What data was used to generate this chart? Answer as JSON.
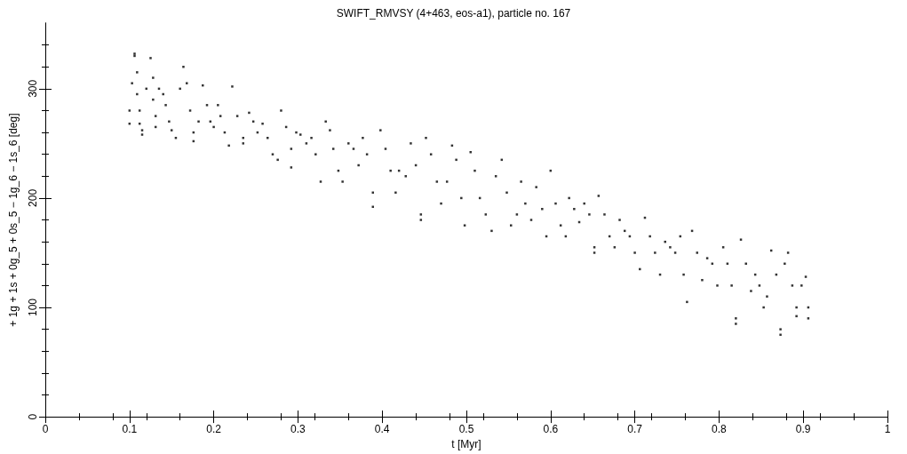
{
  "chart_data": {
    "type": "scatter",
    "title": "SWIFT_RMVSY (4+463, eos-a1), particle no. 167",
    "xlabel": "t [Myr]",
    "ylabel": "+ 1g + 1s + 0g_5 + 0s_5 − 1g_6 − 1s_6 [deg]",
    "xlim": [
      0,
      1
    ],
    "ylim": [
      0,
      360
    ],
    "xticks": [
      0,
      0.1,
      0.2,
      0.3,
      0.4,
      0.5,
      0.6,
      0.7,
      0.8,
      0.9,
      1
    ],
    "yticks": [
      0,
      100,
      200,
      300
    ],
    "marker": "square",
    "series": [
      {
        "color": "#000000",
        "x": [
          0.1,
          0.1,
          0.103,
          0.106,
          0.106,
          0.109,
          0.109,
          0.112,
          0.112,
          0.115,
          0.115,
          0.12,
          0.125,
          0.128,
          0.128,
          0.131,
          0.131,
          0.135,
          0.14,
          0.143,
          0.147,
          0.15,
          0.155,
          0.16,
          0.164,
          0.168,
          0.172,
          0.176,
          0.176,
          0.182,
          0.187,
          0.192,
          0.196,
          0.2,
          0.205,
          0.208,
          0.213,
          0.218,
          0.222,
          0.228,
          0.235,
          0.235,
          0.242,
          0.247,
          0.252,
          0.258,
          0.264,
          0.27,
          0.276,
          0.28,
          0.286,
          0.292,
          0.292,
          0.298,
          0.303,
          0.31,
          0.316,
          0.321,
          0.327,
          0.333,
          0.338,
          0.342,
          0.348,
          0.353,
          0.36,
          0.366,
          0.372,
          0.377,
          0.382,
          0.389,
          0.389,
          0.398,
          0.404,
          0.41,
          0.416,
          0.42,
          0.428,
          0.434,
          0.44,
          0.446,
          0.446,
          0.452,
          0.458,
          0.465,
          0.47,
          0.477,
          0.483,
          0.488,
          0.494,
          0.498,
          0.505,
          0.51,
          0.516,
          0.523,
          0.53,
          0.535,
          0.542,
          0.548,
          0.553,
          0.56,
          0.565,
          0.57,
          0.577,
          0.583,
          0.59,
          0.595,
          0.6,
          0.606,
          0.612,
          0.618,
          0.622,
          0.628,
          0.634,
          0.64,
          0.646,
          0.652,
          0.652,
          0.657,
          0.664,
          0.67,
          0.676,
          0.682,
          0.688,
          0.694,
          0.7,
          0.706,
          0.712,
          0.718,
          0.724,
          0.73,
          0.736,
          0.742,
          0.748,
          0.754,
          0.758,
          0.762,
          0.768,
          0.774,
          0.78,
          0.786,
          0.792,
          0.798,
          0.805,
          0.81,
          0.815,
          0.82,
          0.82,
          0.826,
          0.832,
          0.838,
          0.843,
          0.848,
          0.853,
          0.857,
          0.862,
          0.868,
          0.873,
          0.873,
          0.878,
          0.882,
          0.887,
          0.892,
          0.892,
          0.898,
          0.903,
          0.906,
          0.906
        ],
        "values": [
          268,
          280,
          305,
          330,
          332,
          315,
          295,
          280,
          268,
          262,
          258,
          300,
          328,
          310,
          290,
          275,
          265,
          300,
          295,
          285,
          270,
          262,
          255,
          300,
          320,
          305,
          280,
          260,
          252,
          270,
          303,
          285,
          270,
          265,
          285,
          275,
          260,
          248,
          302,
          275,
          255,
          250,
          278,
          270,
          260,
          268,
          255,
          240,
          235,
          280,
          265,
          245,
          228,
          260,
          258,
          250,
          255,
          240,
          215,
          270,
          262,
          245,
          225,
          215,
          250,
          245,
          230,
          255,
          240,
          205,
          192,
          262,
          245,
          225,
          205,
          225,
          220,
          250,
          230,
          185,
          180,
          255,
          240,
          215,
          195,
          215,
          248,
          235,
          200,
          175,
          242,
          225,
          200,
          185,
          170,
          220,
          235,
          205,
          175,
          185,
          215,
          195,
          180,
          210,
          190,
          165,
          225,
          195,
          175,
          165,
          200,
          190,
          178,
          195,
          185,
          155,
          150,
          202,
          185,
          165,
          155,
          180,
          170,
          165,
          150,
          135,
          182,
          165,
          150,
          130,
          160,
          155,
          150,
          165,
          130,
          105,
          170,
          150,
          125,
          145,
          140,
          120,
          155,
          140,
          120,
          90,
          85,
          162,
          140,
          115,
          130,
          120,
          100,
          110,
          152,
          130,
          80,
          75,
          140,
          150,
          120,
          100,
          92,
          120,
          128,
          100,
          90
        ]
      }
    ]
  }
}
